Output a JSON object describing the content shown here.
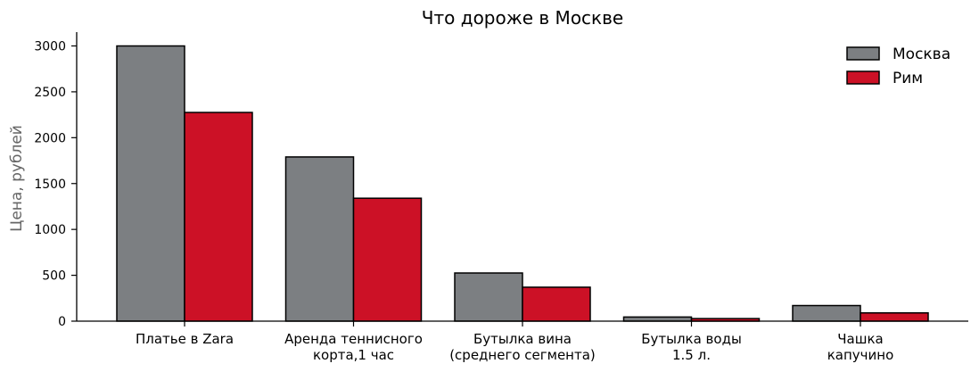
{
  "chart_data": {
    "type": "bar",
    "title": "Что дороже в Москве",
    "xlabel": "",
    "ylabel": "Цена, рублей",
    "categories": [
      [
        "Платье в Zara"
      ],
      [
        "Аренда теннисного",
        "корта,1 час"
      ],
      [
        "Бутылка вина",
        "(среднего сегмента)"
      ],
      [
        "Бутылка воды",
        "1.5 л."
      ],
      [
        "Чашка",
        "капучино"
      ]
    ],
    "series": [
      {
        "name": "Москва",
        "color": "#7c7f82",
        "values": [
          3000,
          1790,
          525,
          45,
          170
        ]
      },
      {
        "name": "Рим",
        "color": "#cc1126",
        "values": [
          2275,
          1340,
          370,
          28,
          90
        ]
      }
    ],
    "ylim": [
      0,
      3150
    ],
    "yticks": [
      "0",
      "500",
      "1000",
      "1500",
      "2000",
      "2500",
      "3000"
    ],
    "legend_position": "top-right",
    "grid": false
  }
}
